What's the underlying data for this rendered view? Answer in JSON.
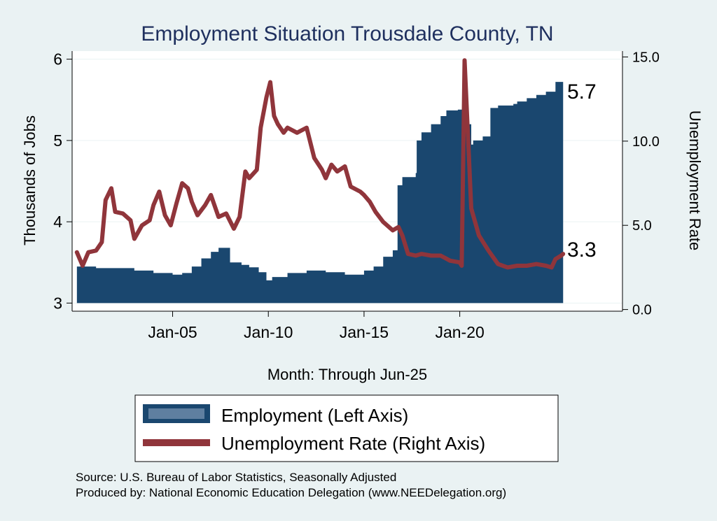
{
  "chart_data": {
    "type": "area+line",
    "title": "Employment Situation Trousdale  County, TN",
    "xlabel": "Month: Through Jun-25",
    "ylabel_left": "Thousands of Jobs",
    "ylabel_right": "Unemployment Rate",
    "x_ticks": [
      2005,
      2010,
      2015,
      2020
    ],
    "x_tick_labels": [
      "Jan-05",
      "Jan-10",
      "Jan-15",
      "Jan-20"
    ],
    "xlim": [
      1999.75,
      2028.5
    ],
    "ylim_left": [
      2.9,
      6.1
    ],
    "y_ticks_left": [
      "3",
      "4",
      "5",
      "6"
    ],
    "ylim_right": [
      -0.1,
      15.35
    ],
    "y_ticks_right": [
      "0.0",
      "5.0",
      "10.0",
      "15.0"
    ],
    "series": [
      {
        "name": "Employment (Left Axis)",
        "axis": "left",
        "color": "#1a476f",
        "points": [
          [
            2000.0,
            3.45
          ],
          [
            2000.7,
            3.45
          ],
          [
            2001.0,
            3.43
          ],
          [
            2002.0,
            3.43
          ],
          [
            2003.0,
            3.4
          ],
          [
            2004.0,
            3.37
          ],
          [
            2005.0,
            3.35
          ],
          [
            2005.5,
            3.37
          ],
          [
            2006.0,
            3.45
          ],
          [
            2006.5,
            3.55
          ],
          [
            2007.0,
            3.63
          ],
          [
            2007.4,
            3.68
          ],
          [
            2008.0,
            3.5
          ],
          [
            2008.6,
            3.47
          ],
          [
            2009.0,
            3.44
          ],
          [
            2009.5,
            3.38
          ],
          [
            2009.9,
            3.28
          ],
          [
            2010.2,
            3.32
          ],
          [
            2011.0,
            3.37
          ],
          [
            2012.0,
            3.4
          ],
          [
            2013.0,
            3.38
          ],
          [
            2014.0,
            3.35
          ],
          [
            2015.0,
            3.4
          ],
          [
            2015.5,
            3.45
          ],
          [
            2016.0,
            3.57
          ],
          [
            2016.5,
            3.65
          ],
          [
            2016.75,
            4.45
          ],
          [
            2017.0,
            4.55
          ],
          [
            2017.7,
            4.6
          ],
          [
            2017.75,
            5.0
          ],
          [
            2018.0,
            5.1
          ],
          [
            2018.5,
            5.2
          ],
          [
            2019.0,
            5.3
          ],
          [
            2019.3,
            5.37
          ],
          [
            2019.9,
            5.38
          ],
          [
            2020.3,
            5.2
          ],
          [
            2020.6,
            4.95
          ],
          [
            2020.7,
            5.0
          ],
          [
            2021.2,
            5.05
          ],
          [
            2021.6,
            5.4
          ],
          [
            2022.0,
            5.43
          ],
          [
            2022.8,
            5.45
          ],
          [
            2023.0,
            5.48
          ],
          [
            2023.5,
            5.52
          ],
          [
            2024.0,
            5.56
          ],
          [
            2024.5,
            5.6
          ],
          [
            2025.0,
            5.72
          ],
          [
            2025.4,
            5.68
          ]
        ]
      },
      {
        "name": "Unemployment Rate (Right Axis)",
        "axis": "right",
        "color": "#90353b",
        "points": [
          [
            2000.0,
            3.4
          ],
          [
            2000.3,
            2.6
          ],
          [
            2000.6,
            3.4
          ],
          [
            2001.0,
            3.5
          ],
          [
            2001.3,
            4.0
          ],
          [
            2001.5,
            6.5
          ],
          [
            2001.8,
            7.2
          ],
          [
            2002.0,
            5.8
          ],
          [
            2002.4,
            5.7
          ],
          [
            2002.8,
            5.3
          ],
          [
            2003.0,
            4.2
          ],
          [
            2003.4,
            5.0
          ],
          [
            2003.8,
            5.3
          ],
          [
            2004.0,
            6.2
          ],
          [
            2004.3,
            7.0
          ],
          [
            2004.6,
            5.6
          ],
          [
            2004.9,
            5.0
          ],
          [
            2005.2,
            6.3
          ],
          [
            2005.5,
            7.5
          ],
          [
            2005.8,
            7.2
          ],
          [
            2006.0,
            6.4
          ],
          [
            2006.3,
            5.6
          ],
          [
            2006.7,
            6.2
          ],
          [
            2007.0,
            6.8
          ],
          [
            2007.4,
            5.5
          ],
          [
            2007.8,
            5.7
          ],
          [
            2008.2,
            4.8
          ],
          [
            2008.5,
            5.5
          ],
          [
            2008.8,
            8.2
          ],
          [
            2009.0,
            7.8
          ],
          [
            2009.4,
            8.3
          ],
          [
            2009.6,
            10.8
          ],
          [
            2009.9,
            12.6
          ],
          [
            2010.1,
            13.5
          ],
          [
            2010.3,
            11.5
          ],
          [
            2010.5,
            11.0
          ],
          [
            2010.8,
            10.5
          ],
          [
            2011.0,
            10.8
          ],
          [
            2011.5,
            10.5
          ],
          [
            2012.0,
            10.8
          ],
          [
            2012.4,
            9.0
          ],
          [
            2012.8,
            8.3
          ],
          [
            2013.0,
            7.8
          ],
          [
            2013.3,
            8.6
          ],
          [
            2013.6,
            8.2
          ],
          [
            2014.0,
            8.5
          ],
          [
            2014.3,
            7.3
          ],
          [
            2014.8,
            7.0
          ],
          [
            2015.0,
            6.8
          ],
          [
            2015.3,
            6.4
          ],
          [
            2015.6,
            5.8
          ],
          [
            2016.0,
            5.2
          ],
          [
            2016.5,
            4.7
          ],
          [
            2016.8,
            4.9
          ],
          [
            2017.0,
            4.4
          ],
          [
            2017.3,
            3.3
          ],
          [
            2017.7,
            3.2
          ],
          [
            2018.0,
            3.3
          ],
          [
            2018.5,
            3.2
          ],
          [
            2019.0,
            3.2
          ],
          [
            2019.5,
            2.9
          ],
          [
            2020.0,
            2.8
          ],
          [
            2020.1,
            2.6
          ],
          [
            2020.25,
            14.8
          ],
          [
            2020.4,
            11.0
          ],
          [
            2020.6,
            6.0
          ],
          [
            2021.0,
            4.4
          ],
          [
            2021.5,
            3.5
          ],
          [
            2022.0,
            2.7
          ],
          [
            2022.5,
            2.5
          ],
          [
            2023.0,
            2.6
          ],
          [
            2023.5,
            2.6
          ],
          [
            2024.0,
            2.7
          ],
          [
            2024.5,
            2.6
          ],
          [
            2024.8,
            2.5
          ],
          [
            2025.0,
            3.0
          ],
          [
            2025.3,
            3.2
          ],
          [
            2025.4,
            3.3
          ]
        ]
      }
    ],
    "end_labels": {
      "employment": "5.7",
      "unemployment": "3.3"
    },
    "legend_position": "bottom"
  },
  "legend": {
    "employment_label": "Employment (Left Axis)",
    "unemployment_label": "Unemployment Rate (Right Axis)"
  },
  "notes": {
    "source": "Source: U.S. Bureau of Labor Statistics, Seasonally Adjusted",
    "produced_by": "Produced by: National Economic Education Delegation (www.NEEDelegation.org)"
  },
  "colors": {
    "background": "#eaf2f3",
    "plot_background": "#ffffff",
    "employment": "#1a476f",
    "unemployment": "#90353b"
  }
}
